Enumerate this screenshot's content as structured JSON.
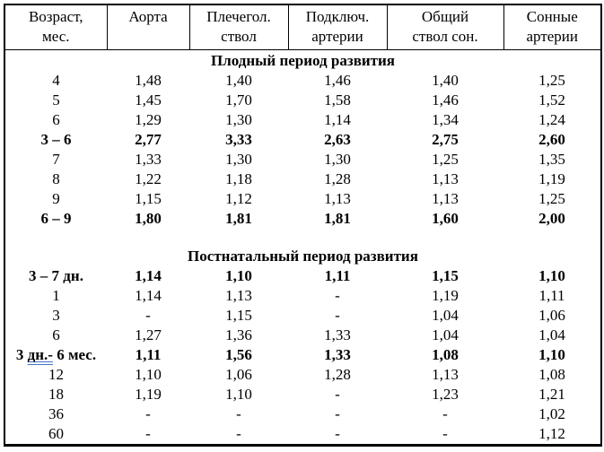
{
  "document": {
    "background_color": "#ffffff",
    "border_color": "#000000",
    "text_color": "#000000"
  },
  "table": {
    "columns": [
      "Возраст,\nмес.",
      "Аорта",
      "Плечегол.\nствол",
      "Подключ.\nартерии",
      "Общий\nствол сон.",
      "Сонные\nартерии"
    ],
    "sections": [
      {
        "title": "Плодный период развития",
        "gap_before": false,
        "rows": [
          {
            "age": "4",
            "cells": [
              "1,48",
              "1,40",
              "1,46",
              "1,40",
              "1,25"
            ],
            "bold": false
          },
          {
            "age": "5",
            "cells": [
              "1,45",
              "1,70",
              "1,58",
              "1,46",
              "1,52"
            ],
            "bold": false
          },
          {
            "age": "6",
            "cells": [
              "1,29",
              "1,30",
              "1,14",
              "1,34",
              "1,24"
            ],
            "bold": false
          },
          {
            "age": "3 – 6",
            "cells": [
              "2,77",
              "3,33",
              "2,63",
              "2,75",
              "2,60"
            ],
            "bold": true
          },
          {
            "age": "7",
            "cells": [
              "1,33",
              "1,30",
              "1,30",
              "1,25",
              "1,35"
            ],
            "bold": false
          },
          {
            "age": "8",
            "cells": [
              "1,22",
              "1,18",
              "1,28",
              "1,13",
              "1,19"
            ],
            "bold": false
          },
          {
            "age": "9",
            "cells": [
              "1,15",
              "1,12",
              "1,13",
              "1,13",
              "1,25"
            ],
            "bold": false
          },
          {
            "age": "6 – 9",
            "cells": [
              "1,80",
              "1,81",
              "1,81",
              "1,60",
              "2,00"
            ],
            "bold": true
          }
        ]
      },
      {
        "title": "Постнатальный период развития",
        "gap_before": true,
        "rows": [
          {
            "age": "3 – 7 дн.",
            "cells": [
              "1,14",
              "1,10",
              "1,11",
              "1,15",
              "1,10"
            ],
            "bold": true
          },
          {
            "age": "1",
            "cells": [
              "1,14",
              "1,13",
              "-",
              "1,19",
              "1,11"
            ],
            "bold": false
          },
          {
            "age": "3",
            "cells": [
              "-",
              "1,15",
              "-",
              "1,04",
              "1,06"
            ],
            "bold": false
          },
          {
            "age": "6",
            "cells": [
              "1,27",
              "1,36",
              "1,33",
              "1,04",
              "1,04"
            ],
            "bold": false
          },
          {
            "age": "3 дн.- 6 мес.",
            "age_parts": {
              "pre": "3 ",
              "marked": "дн.-",
              "post": " 6 мес."
            },
            "cells": [
              "1,11",
              "1,56",
              "1,33",
              "1,08",
              "1,10"
            ],
            "bold": true
          },
          {
            "age": "12",
            "cells": [
              "1,10",
              "1,06",
              "1,28",
              "1,13",
              "1,08"
            ],
            "bold": false
          },
          {
            "age": "18",
            "cells": [
              "1,19",
              "1,10",
              "-",
              "1,23",
              "1,21"
            ],
            "bold": false
          },
          {
            "age": "36",
            "cells": [
              "-",
              "-",
              "-",
              "-",
              "1,02"
            ],
            "bold": false
          },
          {
            "age": "60",
            "cells": [
              "-",
              "-",
              "-",
              "-",
              "1,12"
            ],
            "bold": false
          }
        ]
      }
    ],
    "spellcheck": {
      "marked_text": "дн.-",
      "underline_color": "#4472C4",
      "underline_style": "double"
    }
  }
}
